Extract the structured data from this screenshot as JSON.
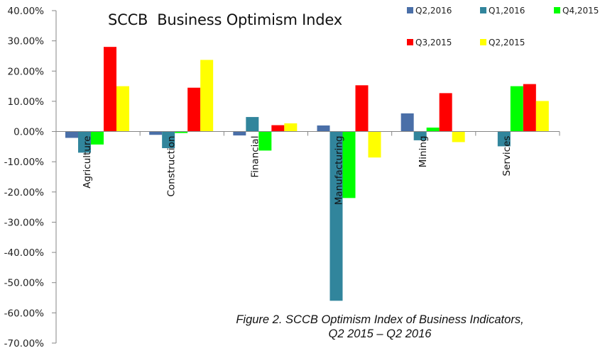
{
  "chart_data": {
    "type": "bar",
    "title": "SCCB  Business Optimism Index",
    "caption_line1": "Figure 2. SCCB Optimism Index of Business Indicators,",
    "caption_line2": "Q2 2015 – Q2 2016",
    "xlabel": "",
    "ylabel": "",
    "ylim": [
      -70,
      40
    ],
    "yticks": [
      40,
      30,
      20,
      10,
      0,
      -10,
      -20,
      -30,
      -40,
      -50,
      -60,
      -70
    ],
    "ytick_labels": [
      "40.00%",
      "30.00%",
      "20.00%",
      "10.00%",
      "0.00%",
      "-10.00%",
      "-20.00%",
      "-30.00%",
      "-40.00%",
      "-50.00%",
      "-60.00%",
      "-70.00%"
    ],
    "grid": false,
    "legend_position": "top-right",
    "categories": [
      "Agriculture",
      "Construction",
      "Financial",
      "Manufacturing",
      "Mining",
      "Services"
    ],
    "series": [
      {
        "name": "Q2,2016",
        "color": "#4a6fa8",
        "values": [
          -2.1,
          -1.1,
          -1.3,
          2.0,
          6.0,
          0.0
        ]
      },
      {
        "name": "Q1,2016",
        "color": "#31859c",
        "values": [
          -7.0,
          -5.5,
          4.8,
          -56.0,
          -2.9,
          -4.9
        ]
      },
      {
        "name": "Q4,2015",
        "color": "#00ff00",
        "values": [
          -4.3,
          -0.5,
          -6.3,
          -22.0,
          1.3,
          15.0
        ]
      },
      {
        "name": "Q3,2015",
        "color": "#ff0000",
        "values": [
          28.0,
          14.5,
          2.1,
          15.3,
          12.7,
          15.7
        ]
      },
      {
        "name": "Q2,2015",
        "color": "#ffff00",
        "values": [
          15.0,
          23.7,
          2.7,
          -8.6,
          -3.5,
          10.1
        ]
      }
    ]
  }
}
